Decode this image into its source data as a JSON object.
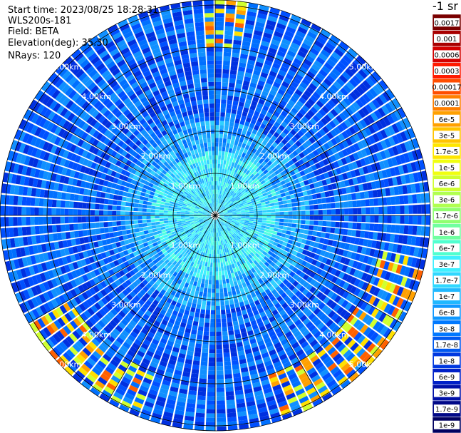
{
  "info": {
    "start_time": "Start time: 2023/08/25 18:28:31",
    "instrument": "WLS200s-181",
    "field": "Field: BETA",
    "elevation": "Elevation(deg): 35.30",
    "nrays": "NRays: 120"
  },
  "ring_labels": [
    "1.00km",
    "2.00km",
    "3.00km",
    "4.00km",
    "5.00km"
  ],
  "colorbar": {
    "title": "-1 sr",
    "ticks": [
      "0.0017",
      "0.001",
      "0.0006",
      "0.0003",
      "0.00017",
      "0.0001",
      "6e-5",
      "3e-5",
      "1.7e-5",
      "1e-5",
      "6e-6",
      "3e-6",
      "1.7e-6",
      "1e-6",
      "6e-7",
      "3e-7",
      "1.7e-7",
      "1e-7",
      "6e-8",
      "3e-8",
      "1.7e-8",
      "1e-8",
      "6e-9",
      "3e-9",
      "1.7e-9",
      "1e-9"
    ],
    "colors": [
      "#7a0000",
      "#a80000",
      "#d40000",
      "#ff1a00",
      "#ff4d00",
      "#ff7f00",
      "#ffa000",
      "#ffc400",
      "#ffe600",
      "#f0ff10",
      "#d0ff30",
      "#b0ff50",
      "#90ff70",
      "#70ffa0",
      "#50ffd0",
      "#40f0ff",
      "#30d8ff",
      "#20b8ff",
      "#1098ff",
      "#0078ff",
      "#0058f0",
      "#0038e0",
      "#0020c8",
      "#0010a8",
      "#000888",
      "#000060"
    ]
  },
  "chart_data": {
    "type": "heatmap",
    "projection": "polar PPI",
    "rays": 120,
    "ring_labels": [
      "1.00km",
      "2.00km",
      "3.00km",
      "4.00km",
      "5.00km"
    ],
    "colorbar_unit": "-1 sr"
  }
}
